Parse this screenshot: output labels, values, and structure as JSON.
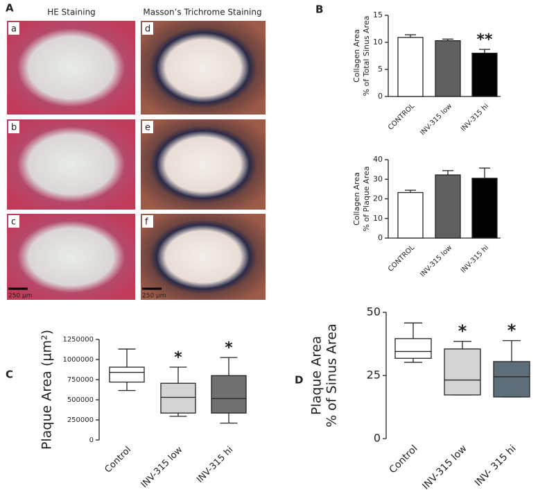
{
  "panels": {
    "letters": [
      "A",
      "B",
      "C",
      "D"
    ],
    "column_titles": [
      "HE Staining",
      "Masson’s Trichrome Staining"
    ],
    "image_labels": [
      "a",
      "b",
      "c",
      "d",
      "e",
      "f"
    ],
    "scale_bars": [
      "250 µm",
      "250 µm"
    ]
  },
  "chart_data": [
    {
      "type": "bar",
      "ylabel": [
        "Collagen Area",
        "% of Total Sinus Area"
      ],
      "categories": [
        "CONTROL",
        "INV-315 low",
        "INV-315 hi"
      ],
      "values": [
        10.9,
        10.3,
        8.0
      ],
      "errors": [
        0.5,
        0.3,
        0.7
      ],
      "colors": [
        "#ffffff",
        "#606060",
        "#000000"
      ],
      "significance": [
        null,
        null,
        "**"
      ],
      "ylim": [
        0,
        15
      ],
      "yticks": [
        0,
        5,
        10,
        15
      ]
    },
    {
      "type": "bar",
      "ylabel": [
        "Collagen Area",
        "% of Plaque Area"
      ],
      "categories": [
        "CONTROL",
        "INV-315 low",
        "INV-315 hi"
      ],
      "values": [
        23.2,
        32.2,
        30.5
      ],
      "errors": [
        1.2,
        2.2,
        5.2
      ],
      "colors": [
        "#ffffff",
        "#606060",
        "#000000"
      ],
      "significance": [
        null,
        null,
        null
      ],
      "ylim": [
        0,
        40
      ],
      "yticks": [
        0,
        10,
        20,
        30,
        40
      ]
    },
    {
      "type": "box",
      "ylabel": [
        "Plaque Area (µm²)"
      ],
      "categories": [
        "Control",
        "INV-315 low",
        "INV-315 hi"
      ],
      "min": [
        615000,
        295000,
        210000
      ],
      "q1": [
        720000,
        335000,
        335000
      ],
      "median": [
        840000,
        530000,
        515000
      ],
      "q3": [
        905000,
        705000,
        800000
      ],
      "max": [
        1130000,
        905000,
        1025000
      ],
      "colors": [
        "#ffffff",
        "#d4d4d4",
        "#707070"
      ],
      "significance": [
        null,
        "*",
        "*"
      ],
      "ylim": [
        0,
        1250000
      ],
      "yticks": [
        0,
        250000,
        500000,
        750000,
        1000000,
        1250000
      ]
    },
    {
      "type": "box",
      "ylabel": [
        "Plaque Area",
        "% of Sinus Area"
      ],
      "categories": [
        "Control",
        "INV-315 low",
        "INV- 315 hi"
      ],
      "min": [
        30.2,
        17.3,
        16.5
      ],
      "q1": [
        31.8,
        17.3,
        16.5
      ],
      "median": [
        34.5,
        23.2,
        24.5
      ],
      "q3": [
        39.6,
        35.5,
        30.5
      ],
      "max": [
        45.8,
        38.5,
        38.8
      ],
      "colors": [
        "#ffffff",
        "#d4d4d4",
        "#5d6e78"
      ],
      "significance": [
        null,
        "*",
        "*"
      ],
      "ylim": [
        0,
        50
      ],
      "yticks": [
        0,
        25,
        50
      ]
    }
  ]
}
